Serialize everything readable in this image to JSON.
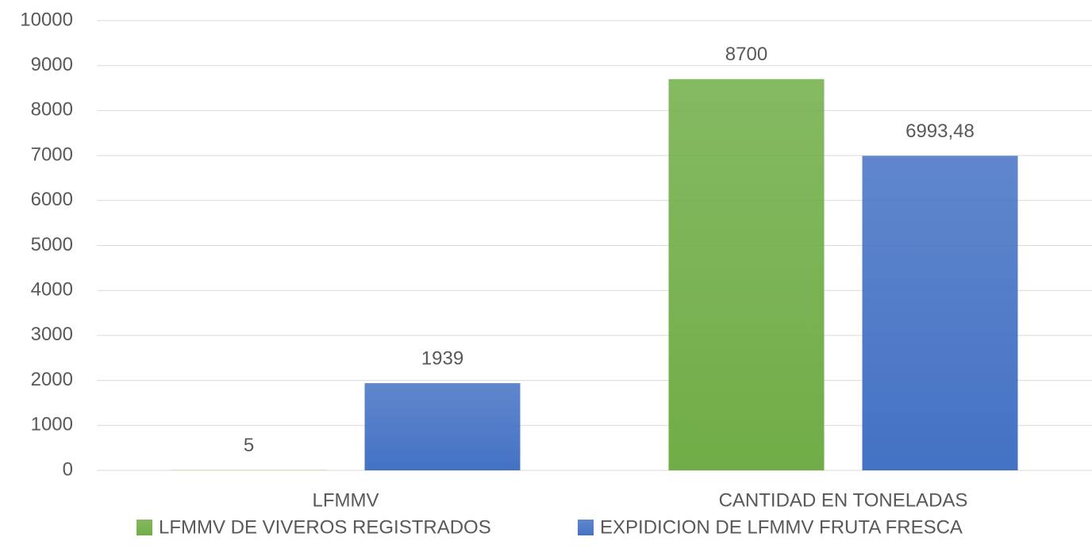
{
  "chart_data": {
    "type": "bar",
    "categories": [
      "LFMMV",
      "CANTIDAD EN TONELADAS"
    ],
    "series": [
      {
        "name": "LFMMV DE VIVEROS REGISTRADOS",
        "color": "#70ad47",
        "values": [
          5,
          8700
        ]
      },
      {
        "name": "EXPIDICION DE LFMMV FRUTA FRESCA",
        "color": "#4472c4",
        "values": [
          1939,
          6993.48
        ],
        "value_labels": [
          "1939",
          "6993,48"
        ]
      }
    ],
    "ylim": [
      0,
      10000
    ],
    "yticks": [
      0,
      1000,
      2000,
      3000,
      4000,
      5000,
      6000,
      7000,
      8000,
      9000,
      10000
    ],
    "grid": true,
    "legend": "bottom"
  }
}
